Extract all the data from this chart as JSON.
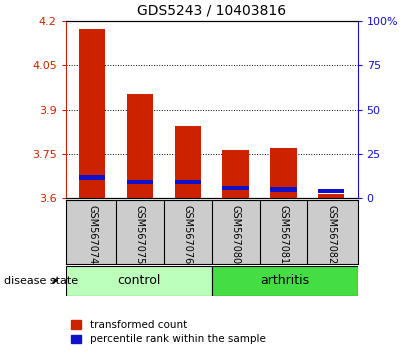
{
  "title": "GDS5243 / 10403816",
  "samples": [
    "GSM567074",
    "GSM567075",
    "GSM567076",
    "GSM567080",
    "GSM567081",
    "GSM567082"
  ],
  "transformed_counts": [
    4.175,
    3.955,
    3.845,
    3.765,
    3.77,
    3.615
  ],
  "percentile_ranks": [
    3.67,
    3.655,
    3.655,
    3.635,
    3.63,
    3.625
  ],
  "y_min": 3.6,
  "y_max": 4.2,
  "y_ticks_left": [
    3.6,
    3.75,
    3.9,
    4.05,
    4.2
  ],
  "y_ticks_right": [
    0,
    25,
    50,
    75,
    100
  ],
  "bar_width": 0.55,
  "red_color": "#cc2200",
  "blue_color": "#1111cc",
  "bg_color": "#cccccc",
  "control_color": "#bbffbb",
  "arthritis_color": "#44dd44",
  "legend_red": "transformed count",
  "legend_blue": "percentile rank within the sample",
  "disease_state_label": "disease state"
}
